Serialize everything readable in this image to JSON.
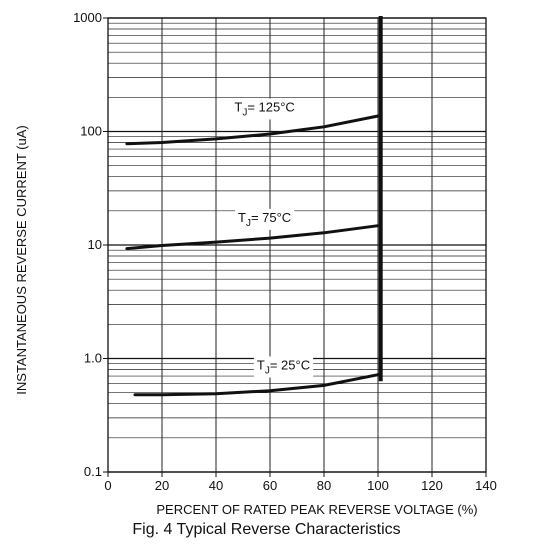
{
  "chart_data": {
    "type": "line",
    "title": "Fig. 4  Typical Reverse Characteristics",
    "xlabel": "PERCENT OF RATED PEAK REVERSE VOLTAGE (%)",
    "ylabel": "INSTANTANEOUS REVERSE CURRENT (uA)",
    "xlim": [
      0,
      140
    ],
    "ylim": [
      0.1,
      1000
    ],
    "yscale": "log",
    "grid": true,
    "x_ticks": [
      "0",
      "20",
      "40",
      "60",
      "80",
      "100",
      "120",
      "140"
    ],
    "y_ticks": [
      {
        "value": 0.1,
        "label": "0.1"
      },
      {
        "value": 1,
        "label": "1.0"
      },
      {
        "value": 10,
        "label": "10"
      },
      {
        "value": 100,
        "label": "100"
      },
      {
        "value": 1000,
        "label": "1000"
      }
    ],
    "limit_line_x": 101,
    "series": [
      {
        "name": "TJ= 125°C",
        "label_parts": [
          "T",
          "J",
          "= 125°C"
        ],
        "label_at": [
          58,
          150
        ],
        "x": [
          7,
          20,
          40,
          60,
          80,
          100
        ],
        "y": [
          78,
          80,
          86,
          95,
          110,
          137
        ]
      },
      {
        "name": "TJ= 75°C",
        "label_parts": [
          "T",
          "J",
          "= 75°C"
        ],
        "label_at": [
          58,
          16
        ],
        "x": [
          7,
          20,
          40,
          60,
          80,
          100
        ],
        "y": [
          9.3,
          9.9,
          10.6,
          11.5,
          12.8,
          14.8
        ]
      },
      {
        "name": "TJ= 25°C",
        "label_parts": [
          "T",
          "J",
          "= 25°C"
        ],
        "label_at": [
          65,
          0.8
        ],
        "x": [
          10,
          20,
          40,
          60,
          80,
          100
        ],
        "y": [
          0.48,
          0.48,
          0.49,
          0.52,
          0.58,
          0.72
        ]
      }
    ]
  }
}
